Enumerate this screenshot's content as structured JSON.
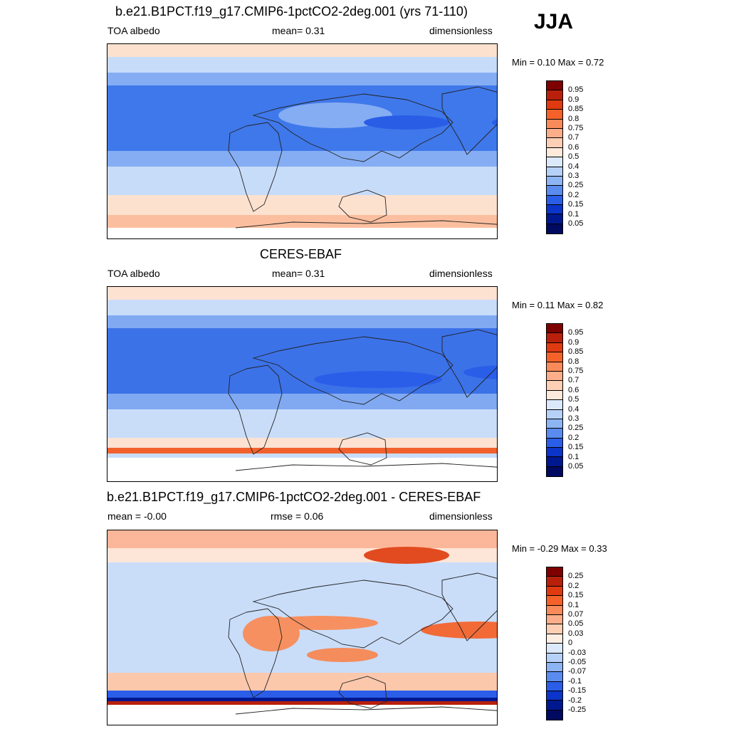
{
  "season": "JJA",
  "panels": [
    {
      "title": "b.e21.B1PCT.f19_g17.CMIP6-1pctCO2-2deg.001 (yrs 71-110)",
      "left_label": "TOA albedo",
      "center_label": "mean=   0.31",
      "right_label": "dimensionless",
      "minmax": "Min =   0.10 Max =   0.72",
      "colorbar_labels": [
        "0.95",
        "0.9",
        "0.85",
        "0.8",
        "0.75",
        "0.7",
        "0.6",
        "0.5",
        "0.4",
        "0.3",
        "0.25",
        "0.2",
        "0.15",
        "0.1",
        "0.05"
      ],
      "colorbar_colors": [
        "#7f0000",
        "#b8200b",
        "#e03a10",
        "#f4622a",
        "#f98a5a",
        "#fcae8a",
        "#fdcfb5",
        "#fdeadb",
        "#dbe9fb",
        "#b6d1f8",
        "#8db4f3",
        "#5a8cef",
        "#2b5ee8",
        "#0b34c9",
        "#00188f",
        "#000a60"
      ],
      "map_colors": {
        "ocean": "#3f78ea",
        "band": "#85adf3",
        "light": "#c7dcf9",
        "pale": "#fde1cf",
        "orange": "#fbbf9f"
      }
    },
    {
      "title": "CERES-EBAF",
      "left_label": "TOA albedo",
      "center_label": "mean=   0.31",
      "right_label": "dimensionless",
      "minmax": "Min =   0.11 Max =   0.82",
      "colorbar_labels": [
        "0.95",
        "0.9",
        "0.85",
        "0.8",
        "0.75",
        "0.7",
        "0.6",
        "0.5",
        "0.4",
        "0.3",
        "0.25",
        "0.2",
        "0.15",
        "0.1",
        "0.05"
      ],
      "colorbar_colors": [
        "#7f0000",
        "#b8200b",
        "#e03a10",
        "#f4622a",
        "#f98a5a",
        "#fcae8a",
        "#fdcfb5",
        "#fdeadb",
        "#dbe9fb",
        "#b6d1f8",
        "#8db4f3",
        "#5a8cef",
        "#2b5ee8",
        "#0b34c9",
        "#00188f",
        "#000a60"
      ],
      "map_colors": {
        "ocean": "#3c72e8",
        "band": "#80a9f2",
        "light": "#c9ddf9",
        "pale": "#fde2d2",
        "orange": "#f1612d"
      }
    },
    {
      "title": "b.e21.B1PCT.f19_g17.CMIP6-1pctCO2-2deg.001 - CERES-EBAF",
      "left_label": "mean =  -0.00",
      "center_label": "rmse =   0.06",
      "right_label": "dimensionless",
      "minmax": "Min =  -0.29 Max =   0.33",
      "colorbar_labels": [
        "0.25",
        "0.2",
        "0.15",
        "0.1",
        "0.07",
        "0.05",
        "0.03",
        "0",
        "-0.03",
        "-0.05",
        "-0.07",
        "-0.1",
        "-0.15",
        "-0.2",
        "-0.25"
      ],
      "colorbar_colors": [
        "#7f0000",
        "#b8200b",
        "#e03a10",
        "#f4622a",
        "#f98a5a",
        "#fcae8a",
        "#fdcfb5",
        "#fdeee4",
        "#dbe9fb",
        "#b6d1f8",
        "#8db4f3",
        "#5a8cef",
        "#2b5ee8",
        "#0b34c9",
        "#00188f",
        "#000a60"
      ],
      "map_colors": {
        "ocean": "#c9ddf9",
        "band": "#fcc8ac",
        "light": "#e6effc",
        "pale": "#fde6d8",
        "orange": "#f1612d"
      }
    }
  ]
}
